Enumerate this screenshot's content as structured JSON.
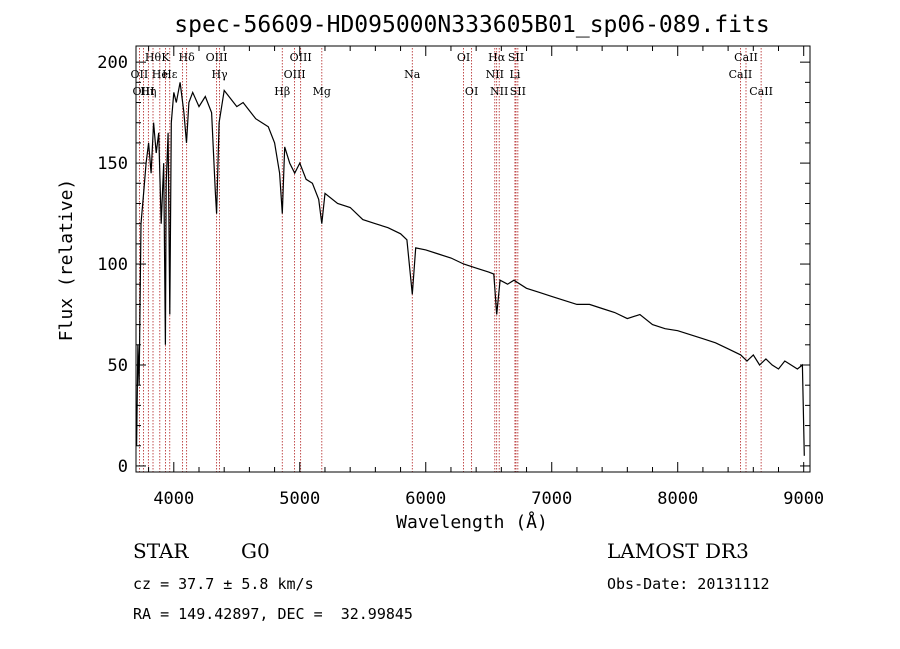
{
  "chart_data": {
    "type": "line",
    "title": "spec-56609-HD095000N333605B01_sp06-089.fits",
    "xlabel": "Wavelength (Å)",
    "ylabel": "Flux (relative)",
    "xlim": [
      3700,
      9050
    ],
    "ylim": [
      -3,
      208
    ],
    "xticks": [
      4000,
      5000,
      6000,
      7000,
      8000,
      9000
    ],
    "xtick_labels": [
      "4000",
      "5000",
      "6000",
      "7000",
      "8000",
      "9000"
    ],
    "yticks": [
      0,
      50,
      100,
      150,
      200
    ],
    "ytick_labels": [
      "0",
      "50",
      "100",
      "150",
      "200"
    ],
    "grid": false,
    "series": [
      {
        "name": "flux",
        "x": [
          3705,
          3715,
          3725,
          3740,
          3760,
          3780,
          3800,
          3820,
          3840,
          3860,
          3880,
          3900,
          3920,
          3933,
          3940,
          3955,
          3968,
          3980,
          4000,
          4020,
          4050,
          4080,
          4101,
          4120,
          4150,
          4200,
          4250,
          4300,
          4330,
          4340,
          4360,
          4400,
          4450,
          4500,
          4550,
          4600,
          4650,
          4700,
          4750,
          4800,
          4840,
          4861,
          4880,
          4920,
          4960,
          5000,
          5050,
          5100,
          5150,
          5175,
          5200,
          5300,
          5400,
          5500,
          5600,
          5700,
          5800,
          5850,
          5893,
          5920,
          6000,
          6100,
          6200,
          6300,
          6400,
          6500,
          6540,
          6563,
          6590,
          6650,
          6700,
          6800,
          6900,
          7000,
          7100,
          7200,
          7300,
          7400,
          7500,
          7600,
          7700,
          7800,
          7900,
          8000,
          8100,
          8200,
          8300,
          8400,
          8500,
          8550,
          8600,
          8650,
          8700,
          8750,
          8800,
          8850,
          8900,
          8950,
          8990,
          9005
        ],
        "values": [
          10,
          60,
          40,
          120,
          135,
          150,
          160,
          145,
          170,
          155,
          165,
          120,
          150,
          60,
          140,
          165,
          75,
          170,
          185,
          180,
          190,
          175,
          160,
          180,
          185,
          178,
          183,
          175,
          135,
          125,
          170,
          186,
          182,
          178,
          180,
          176,
          172,
          170,
          168,
          160,
          145,
          125,
          158,
          150,
          145,
          150,
          142,
          140,
          132,
          120,
          135,
          130,
          128,
          122,
          120,
          118,
          115,
          112,
          85,
          108,
          107,
          105,
          103,
          100,
          98,
          96,
          95,
          75,
          92,
          90,
          92,
          88,
          86,
          84,
          82,
          80,
          80,
          78,
          76,
          73,
          75,
          70,
          68,
          67,
          65,
          63,
          61,
          58,
          55,
          52,
          55,
          50,
          53,
          50,
          48,
          52,
          50,
          48,
          50,
          5
        ]
      }
    ],
    "line_markers": [
      {
        "wl": 3835,
        "label": "Hθ",
        "row": 0
      },
      {
        "wl": 3934,
        "label": "K",
        "row": 0
      },
      {
        "wl": 4102,
        "label": "Hδ",
        "row": 0
      },
      {
        "wl": 4340,
        "label": "OIII",
        "row": 0
      },
      {
        "wl": 5007,
        "label": "OIII",
        "row": 0
      },
      {
        "wl": 6300,
        "label": "OI",
        "row": 0
      },
      {
        "wl": 6563,
        "label": "Hα",
        "row": 0
      },
      {
        "wl": 6716,
        "label": "SII",
        "row": 0
      },
      {
        "wl": 8542,
        "label": "CaII",
        "row": 0
      },
      {
        "wl": 3727,
        "label": "OII",
        "row": 1
      },
      {
        "wl": 3889,
        "label": "He",
        "row": 1
      },
      {
        "wl": 3968,
        "label": "Hε",
        "row": 1
      },
      {
        "wl": 4070,
        "label": "",
        "row": 1
      },
      {
        "wl": 4363,
        "label": "Hγ",
        "row": 1
      },
      {
        "wl": 4959,
        "label": "OIII",
        "row": 1
      },
      {
        "wl": 5893,
        "label": "Na",
        "row": 1
      },
      {
        "wl": 6548,
        "label": "NII",
        "row": 1
      },
      {
        "wl": 6708,
        "label": "Li",
        "row": 1
      },
      {
        "wl": 8498,
        "label": "CaII",
        "row": 1
      },
      {
        "wl": 3760,
        "label": "OIII",
        "row": 2
      },
      {
        "wl": 3798,
        "label": "Hη",
        "row": 2
      },
      {
        "wl": 4861,
        "label": "Hβ",
        "row": 2
      },
      {
        "wl": 5175,
        "label": "Mg",
        "row": 2
      },
      {
        "wl": 6364,
        "label": "OI",
        "row": 2
      },
      {
        "wl": 6583,
        "label": "NII",
        "row": 2
      },
      {
        "wl": 6731,
        "label": "SII",
        "row": 2
      },
      {
        "wl": 8662,
        "label": "CaII",
        "row": 2
      }
    ]
  },
  "info": {
    "class": "STAR",
    "subclass": "G0",
    "survey": "LAMOST DR3",
    "cz": "cz = 37.7 ± 5.8 km/s",
    "obs_date": "Obs-Date: 20131112",
    "radec": "RA = 149.42897, DEC =  32.99845"
  },
  "colors": {
    "line": "#000000",
    "marker": "#b22222",
    "axes": "#000000"
  }
}
